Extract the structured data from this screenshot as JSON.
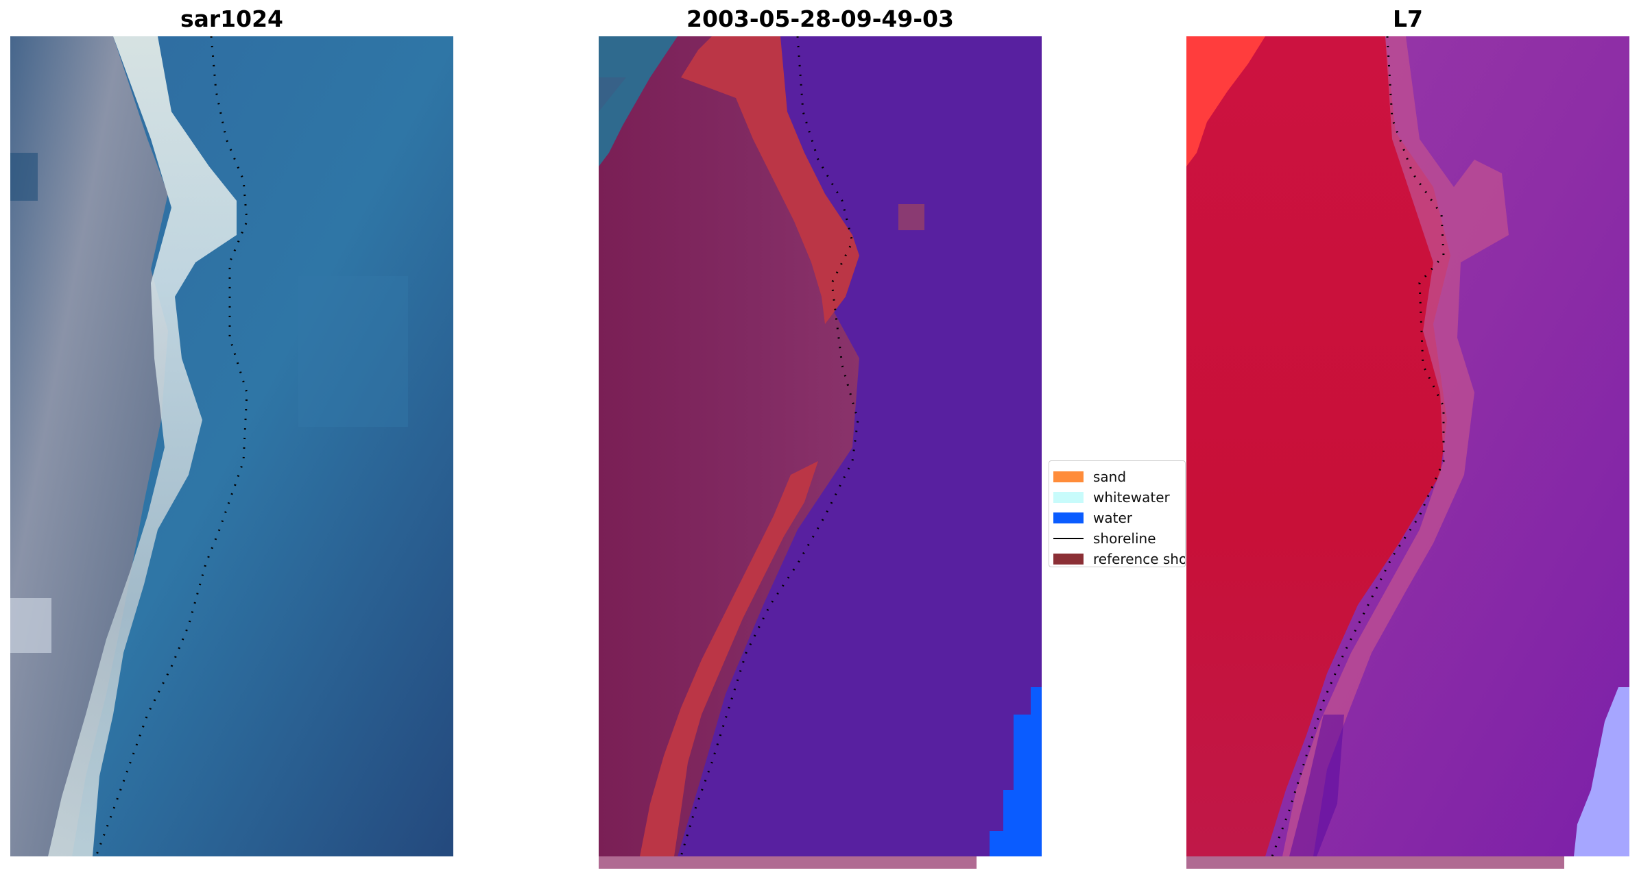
{
  "panels": [
    {
      "title": "sar1024"
    },
    {
      "title": "2003-05-28-09-49-03"
    },
    {
      "title": "L7"
    }
  ],
  "legend": {
    "items": [
      {
        "label": "sand",
        "color": "#ff8c3a",
        "kind": "patch"
      },
      {
        "label": "whitewater",
        "color": "#c8fbfb",
        "kind": "patch"
      },
      {
        "label": "water",
        "color": "#0a5cff",
        "kind": "patch"
      },
      {
        "label": "shoreline",
        "color": "#000000",
        "kind": "line"
      },
      {
        "label": "reference shoreline",
        "color": "#8b2f35",
        "kind": "patch"
      }
    ]
  },
  "colors": {
    "rgb_water": "#2e6ea3",
    "rgb_land": "#7e8aa3",
    "rgb_surf": "#dfe8ea",
    "class_water": "#5820a0",
    "class_land": "#7e2660",
    "class_sand": "#bb3646",
    "class_deep_water": "#0a5cff",
    "swir_land": "#c8103a",
    "swir_water": "#8a2ea8",
    "swir_bright": "#ff3d3d"
  }
}
